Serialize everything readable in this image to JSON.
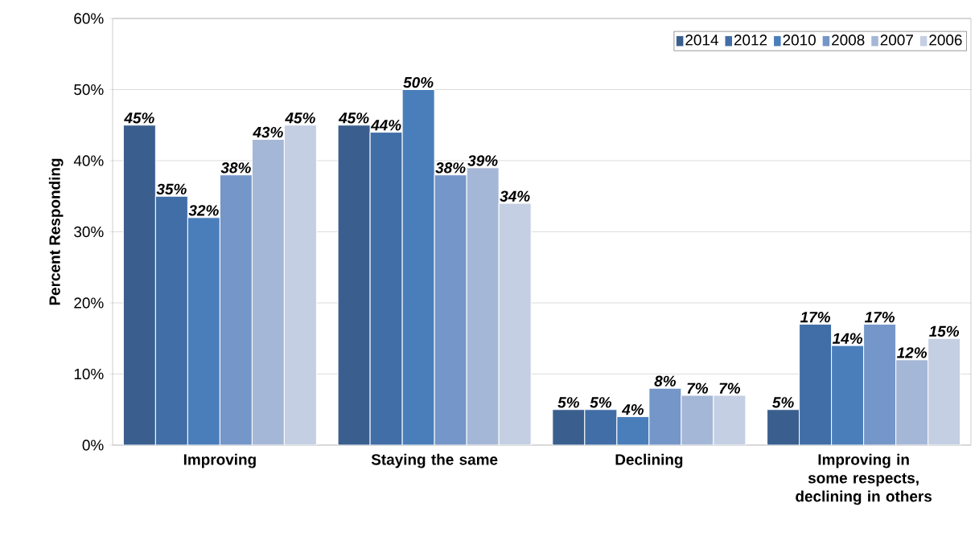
{
  "chart_data": {
    "type": "bar",
    "ylabel": "Percent Responding",
    "categories": [
      "Improving",
      "Staying the same",
      "Declining",
      "Improving in some respects, declining in others"
    ],
    "series": [
      {
        "name": "2014",
        "color": "#3a5f8e",
        "values": [
          45,
          45,
          5,
          5
        ],
        "value_labels": [
          "45%",
          "45%",
          "5%",
          "5%"
        ]
      },
      {
        "name": "2012",
        "color": "#416ea6",
        "values": [
          35,
          44,
          5,
          17
        ],
        "value_labels": [
          "35%",
          "44%",
          "5%",
          "17%"
        ]
      },
      {
        "name": "2010",
        "color": "#4a7ebb",
        "values": [
          32,
          50,
          4,
          14
        ],
        "value_labels": [
          "32%",
          "50%",
          "4%",
          "14%"
        ]
      },
      {
        "name": "2008",
        "color": "#7596c8",
        "values": [
          38,
          38,
          8,
          17
        ],
        "value_labels": [
          "38%",
          "38%",
          "8%",
          "17%"
        ]
      },
      {
        "name": "2007",
        "color": "#a5b7d6",
        "values": [
          43,
          39,
          7,
          12
        ],
        "value_labels": [
          "43%",
          "39%",
          "7%",
          "12%"
        ]
      },
      {
        "name": "2006",
        "color": "#c5cfe3",
        "values": [
          45,
          34,
          7,
          15
        ],
        "value_labels": [
          "45%",
          "34%",
          "7%",
          "15%"
        ]
      }
    ],
    "ylim": [
      0,
      60
    ],
    "yticks": [
      {
        "value": 0,
        "label": "0%"
      },
      {
        "value": 10,
        "label": "10%"
      },
      {
        "value": 20,
        "label": "20%"
      },
      {
        "value": 30,
        "label": "30%"
      },
      {
        "value": 40,
        "label": "40%"
      },
      {
        "value": 50,
        "label": "50%"
      },
      {
        "value": 60,
        "label": "60%"
      }
    ],
    "grid": "y",
    "legend": "top right"
  }
}
